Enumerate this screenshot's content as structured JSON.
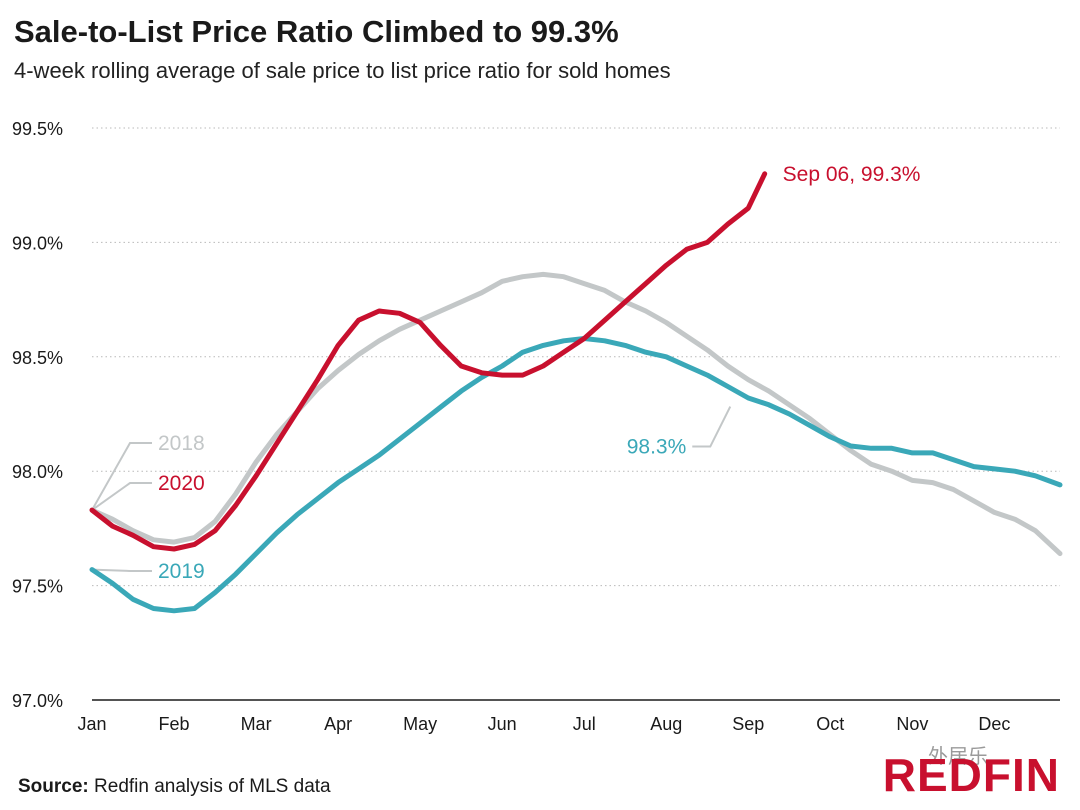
{
  "title": "Sale-to-List Price Ratio Climbed to 99.3%",
  "subtitle": "4-week rolling average of sale price to list price ratio for sold homes",
  "source": {
    "label": "Source:",
    "text": "Redfin analysis of MLS data"
  },
  "logo": {
    "text": "REDFIN",
    "color": "#c8102e"
  },
  "watermark": "外居乐",
  "colors": {
    "2018": "#c3c7c8",
    "2019": "#3aa8b8",
    "2020": "#c8102e",
    "grid": "#b9b9b9",
    "axis": "#1a1a1a"
  },
  "chart_data": {
    "type": "line",
    "ylim": [
      97.0,
      99.5
    ],
    "yticks": [
      97.0,
      97.5,
      98.0,
      98.5,
      99.0,
      99.5
    ],
    "ytick_labels": [
      "97.0%",
      "97.5%",
      "98.0%",
      "98.5%",
      "99.0%",
      "99.5%"
    ],
    "xlim": [
      0,
      11.8
    ],
    "xticks": [
      0,
      1,
      2,
      3,
      4,
      5,
      6,
      7,
      8,
      9,
      10,
      11
    ],
    "xtick_labels": [
      "Jan",
      "Feb",
      "Mar",
      "Apr",
      "May",
      "Jun",
      "Jul",
      "Aug",
      "Sep",
      "Oct",
      "Nov",
      "Dec"
    ],
    "grid": "horizontal dotted",
    "series": [
      {
        "name": "2018",
        "color_key": "2018",
        "label_position": "left",
        "x": [
          0,
          0.25,
          0.5,
          0.75,
          1.0,
          1.25,
          1.5,
          1.75,
          2.0,
          2.25,
          2.5,
          2.75,
          3.0,
          3.25,
          3.5,
          3.75,
          4.0,
          4.25,
          4.5,
          4.75,
          5.0,
          5.25,
          5.5,
          5.75,
          6.0,
          6.25,
          6.5,
          6.75,
          7.0,
          7.25,
          7.5,
          7.75,
          8.0,
          8.25,
          8.5,
          8.75,
          9.0,
          9.25,
          9.5,
          9.75,
          10.0,
          10.25,
          10.5,
          10.75,
          11.0,
          11.25,
          11.5,
          11.8
        ],
        "y": [
          97.83,
          97.79,
          97.74,
          97.7,
          97.69,
          97.71,
          97.78,
          97.9,
          98.04,
          98.16,
          98.26,
          98.36,
          98.44,
          98.51,
          98.57,
          98.62,
          98.66,
          98.7,
          98.74,
          98.78,
          98.83,
          98.85,
          98.86,
          98.85,
          98.82,
          98.79,
          98.74,
          98.7,
          98.65,
          98.59,
          98.53,
          98.46,
          98.4,
          98.35,
          98.29,
          98.23,
          98.16,
          98.09,
          98.03,
          98.0,
          97.96,
          97.95,
          97.92,
          97.87,
          97.82,
          97.79,
          97.74,
          97.64
        ]
      },
      {
        "name": "2019",
        "color_key": "2019",
        "label_position": "left",
        "x": [
          0,
          0.25,
          0.5,
          0.75,
          1.0,
          1.25,
          1.5,
          1.75,
          2.0,
          2.25,
          2.5,
          2.75,
          3.0,
          3.25,
          3.5,
          3.75,
          4.0,
          4.25,
          4.5,
          4.75,
          5.0,
          5.25,
          5.5,
          5.75,
          6.0,
          6.25,
          6.5,
          6.75,
          7.0,
          7.25,
          7.5,
          7.75,
          8.0,
          8.25,
          8.5,
          8.75,
          9.0,
          9.25,
          9.5,
          9.75,
          10.0,
          10.25,
          10.5,
          10.75,
          11.0,
          11.25,
          11.5,
          11.8
        ],
        "y": [
          97.57,
          97.51,
          97.44,
          97.4,
          97.39,
          97.4,
          97.47,
          97.55,
          97.64,
          97.73,
          97.81,
          97.88,
          97.95,
          98.01,
          98.07,
          98.14,
          98.21,
          98.28,
          98.35,
          98.41,
          98.46,
          98.52,
          98.55,
          98.57,
          98.58,
          98.57,
          98.55,
          98.52,
          98.5,
          98.46,
          98.42,
          98.37,
          98.32,
          98.29,
          98.25,
          98.2,
          98.15,
          98.11,
          98.1,
          98.1,
          98.08,
          98.08,
          98.05,
          98.02,
          98.01,
          98.0,
          97.98,
          97.94
        ]
      },
      {
        "name": "2020",
        "color_key": "2020",
        "label_position": "left",
        "x": [
          0,
          0.25,
          0.5,
          0.75,
          1.0,
          1.25,
          1.5,
          1.75,
          2.0,
          2.25,
          2.5,
          2.75,
          3.0,
          3.25,
          3.5,
          3.75,
          4.0,
          4.25,
          4.5,
          4.75,
          5.0,
          5.25,
          5.5,
          5.75,
          6.0,
          6.25,
          6.5,
          6.75,
          7.0,
          7.25,
          7.5,
          7.75,
          8.0,
          8.2
        ],
        "y": [
          97.83,
          97.76,
          97.72,
          97.67,
          97.66,
          97.68,
          97.74,
          97.85,
          97.98,
          98.12,
          98.26,
          98.4,
          98.55,
          98.66,
          98.7,
          98.69,
          98.65,
          98.55,
          98.46,
          98.43,
          98.42,
          98.42,
          98.46,
          98.52,
          98.58,
          98.66,
          98.74,
          98.82,
          98.9,
          98.97,
          99.0,
          99.08,
          99.15,
          99.3
        ]
      }
    ],
    "annotations": [
      {
        "text": "Sep 06, 99.3%",
        "x": 8.2,
        "y": 99.3,
        "color_key": "2020"
      },
      {
        "text": "98.3%",
        "x": 8.0,
        "y": 98.3,
        "color_key": "2019"
      }
    ]
  }
}
